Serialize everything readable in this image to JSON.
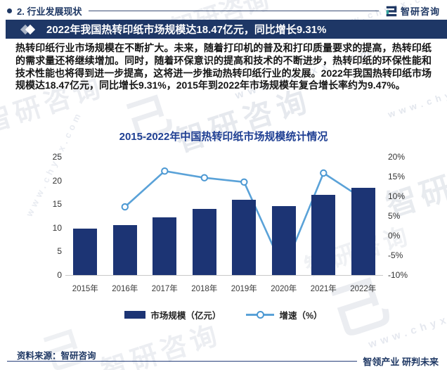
{
  "page": {
    "header": {
      "section_title": "2. 行业发展现状",
      "logo_text": "智研咨询"
    },
    "banner": {
      "headline": "2022年我国热转印纸市场规模达18.47亿元，同比增长9.31%"
    },
    "body_paragraph": "热转印纸行业市场规模在不断扩大。未来，随着打印机的普及和打印质量要求的提高，热转印纸的需求量还将继续增加。同时，随着环保意识的提高和技术的不断进步，热转印纸的环保性能和技术性能也将得到进一步提高，这将进一步推动热转印纸行业的发展。2022年我国热转印纸市场规模达18.47亿元，同比增长9.31%，2015年到2022年市场规模年复合增长率约为9.47%。",
    "footer": {
      "source": "资料来源：智研咨询",
      "tagline": "智领产业 研判未来"
    },
    "watermark": {
      "brand": "智研咨询",
      "url": "www.chyxx.com",
      "mark": "己"
    },
    "colors": {
      "navy": "#1f3864",
      "banner_bg": "#1e3766",
      "bar_navy": "#1c3474",
      "line_blue": "#5aa2d8",
      "title_blue": "#1f3f93"
    }
  },
  "chart_data": {
    "type": "bar",
    "subtype": "bar+line combo",
    "title": "2015-2022年中国热转印纸市场规模统计情况",
    "categories": [
      "2015年",
      "2016年",
      "2017年",
      "2018年",
      "2019年",
      "2020年",
      "2021年",
      "2022年"
    ],
    "series": [
      {
        "name": "市场规模（亿元）",
        "type": "bar",
        "axis": "left",
        "color": "#1c3474",
        "values": [
          9.81,
          10.53,
          12.26,
          14.06,
          15.97,
          14.58,
          16.9,
          18.47
        ]
      },
      {
        "name": "增速（%）",
        "type": "line",
        "axis": "right",
        "color": "#5aa2d8",
        "marker_color": "#4a97d2",
        "values": [
          null,
          7.3,
          16.4,
          14.7,
          13.6,
          -8.7,
          15.9,
          9.31
        ]
      }
    ],
    "left_axis": {
      "min": 0,
      "max": 25,
      "ticks": [
        0,
        5,
        10,
        15,
        20,
        25
      ]
    },
    "right_axis": {
      "min": -10,
      "max": 20,
      "ticks": [
        "-10%",
        "-5%",
        "0%",
        "5%",
        "10%",
        "15%",
        "20%"
      ]
    },
    "legend_position": "bottom",
    "grid": false
  }
}
